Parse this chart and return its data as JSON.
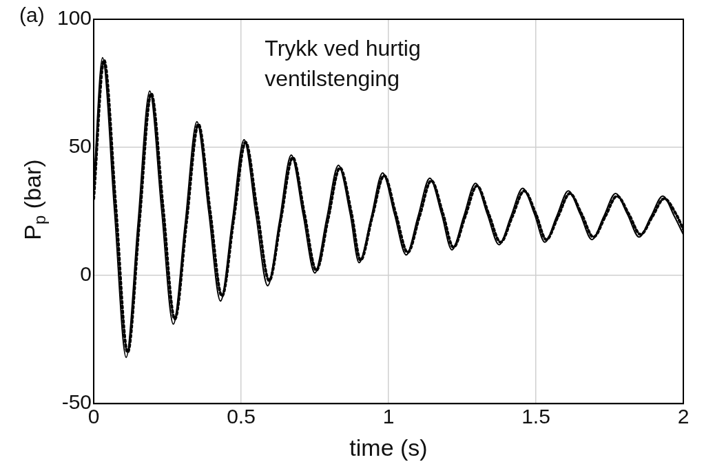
{
  "chart_data": {
    "type": "line",
    "title": "(a)",
    "xlabel": "time (s)",
    "ylabel": "P$_{p}$ (bar)",
    "annotations": [
      "Trykk ved hurtig ventilstenging"
    ],
    "xlim": [
      0,
      2
    ],
    "xticks": [
      0,
      0.5,
      1,
      1.5,
      2
    ],
    "ylim": [
      -50,
      100
    ],
    "yticks": [
      -50,
      0,
      50,
      100
    ],
    "grid": true,
    "legend": false,
    "marker": "none",
    "series": [
      {
        "color": "#000000",
        "line_style": "solid",
        "x": [
          0,
          0.03,
          0.07,
          0.11,
          0.15,
          0.19,
          0.23,
          0.27,
          0.31,
          0.35,
          0.39,
          0.43,
          0.47,
          0.51,
          0.55,
          0.59,
          0.63,
          0.67,
          0.71,
          0.75,
          0.79,
          0.83,
          0.87,
          0.9,
          0.94,
          0.98,
          1.02,
          1.06,
          1.1,
          1.14,
          1.18,
          1.215,
          1.255,
          1.295,
          1.335,
          1.375,
          1.415,
          1.455,
          1.495,
          1.53,
          1.57,
          1.61,
          1.65,
          1.69,
          1.73,
          1.77,
          1.81,
          1.85,
          1.89,
          1.93,
          1.97,
          2
        ],
        "values": [
          35,
          85,
          26,
          -32,
          20,
          72,
          26,
          -19,
          20,
          60,
          25,
          -10,
          21,
          53,
          24,
          -4,
          21,
          47,
          24,
          1,
          22,
          43,
          24,
          5,
          22,
          40,
          24,
          8,
          23,
          38,
          24,
          10,
          23,
          36,
          24,
          12,
          23,
          34,
          24,
          13,
          23,
          33,
          24,
          14,
          23,
          32,
          24,
          15,
          23,
          31,
          23,
          16
        ]
      },
      {
        "color": "#000000",
        "line_style": "dotted",
        "x": [
          0,
          0.035,
          0.075,
          0.115,
          0.155,
          0.195,
          0.235,
          0.275,
          0.315,
          0.355,
          0.395,
          0.435,
          0.475,
          0.515,
          0.555,
          0.595,
          0.635,
          0.675,
          0.715,
          0.755,
          0.795,
          0.835,
          0.875,
          0.905,
          0.945,
          0.985,
          1.025,
          1.065,
          1.105,
          1.145,
          1.185,
          1.22,
          1.26,
          1.3,
          1.34,
          1.38,
          1.42,
          1.46,
          1.5,
          1.535,
          1.575,
          1.615,
          1.655,
          1.695,
          1.735,
          1.775,
          1.815,
          1.855,
          1.895,
          1.935,
          1.975,
          2
        ],
        "values": [
          30,
          84,
          27,
          -30,
          21,
          71,
          27,
          -17,
          21,
          59,
          25,
          -8,
          22,
          52,
          25,
          -2,
          22,
          46,
          24,
          2,
          22,
          42,
          24,
          6,
          23,
          39,
          24,
          9,
          23,
          37,
          24,
          11,
          23,
          35,
          24,
          13,
          23,
          33,
          24,
          14,
          23,
          32,
          24,
          15,
          23,
          31,
          24,
          16,
          23,
          30,
          24,
          18
        ]
      }
    ]
  }
}
